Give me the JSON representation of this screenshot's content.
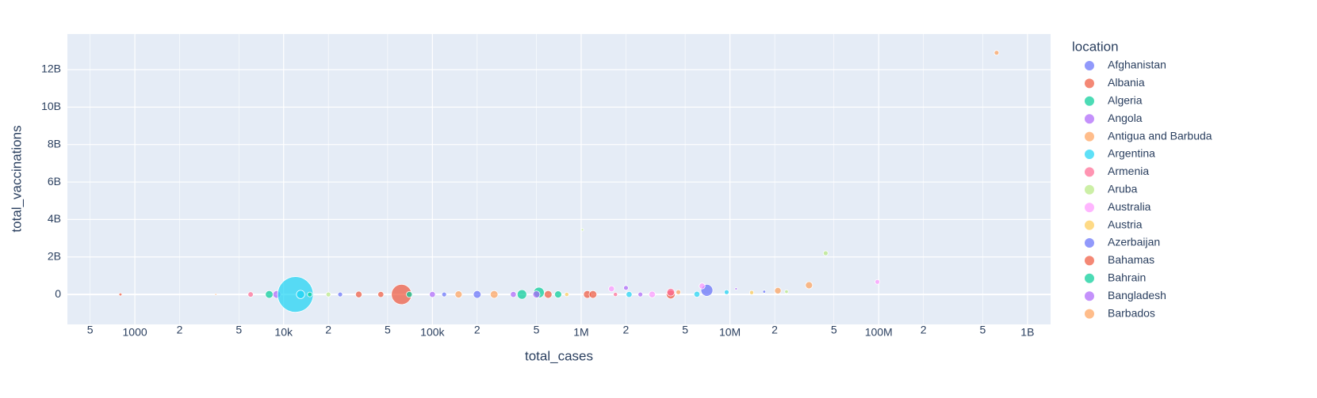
{
  "chart_data": {
    "type": "scatter",
    "xlabel": "total_cases",
    "ylabel": "total_vaccinations",
    "legend_title": "location",
    "xscale": "log",
    "grid": true,
    "xlim": [
      352,
      1430000000
    ],
    "ylim": [
      -1600000000,
      13900000000
    ],
    "xticks": [
      {
        "value": 500,
        "label": "5"
      },
      1000,
      {
        "value": 2000,
        "label": "2"
      },
      {
        "value": 5000,
        "label": "5"
      },
      {
        "value": 10000,
        "label": "10k"
      },
      {
        "value": 20000,
        "label": "2"
      },
      {
        "value": 50000,
        "label": "5"
      },
      {
        "value": 100000,
        "label": "100k"
      },
      {
        "value": 200000,
        "label": "2"
      },
      {
        "value": 500000,
        "label": "5"
      },
      {
        "value": 1000000,
        "label": "1M"
      },
      {
        "value": 2000000,
        "label": "2"
      },
      {
        "value": 5000000,
        "label": "5"
      },
      {
        "value": 10000000,
        "label": "10M"
      },
      {
        "value": 20000000,
        "label": "2"
      },
      {
        "value": 50000000,
        "label": "5"
      },
      {
        "value": 100000000,
        "label": "100M"
      },
      {
        "value": 200000000,
        "label": "2"
      },
      {
        "value": 500000000,
        "label": "5"
      },
      {
        "value": 1000000000,
        "label": "1B"
      }
    ],
    "yticks": [
      0,
      {
        "value": 2000000000,
        "label": "2B"
      },
      {
        "value": 4000000000,
        "label": "4B"
      },
      {
        "value": 6000000000,
        "label": "6B"
      },
      {
        "value": 8000000000,
        "label": "8B"
      },
      {
        "value": 10000000000,
        "label": "10B"
      },
      {
        "value": 12000000000,
        "label": "12B"
      }
    ],
    "series": [
      {
        "name": "Afghanistan",
        "color": "#636efa",
        "x": [
          7000000,
          120000,
          24000
        ],
        "values": [
          220000000,
          0,
          0
        ],
        "sizes": [
          20,
          8,
          8
        ]
      },
      {
        "name": "Albania",
        "color": "#EF553B",
        "x": [
          800,
          32000,
          62000,
          600000,
          1100000,
          4000000
        ],
        "values": [
          0,
          0,
          0,
          0,
          0,
          0
        ],
        "sizes": [
          5,
          11,
          34,
          13,
          13,
          15
        ]
      },
      {
        "name": "Algeria",
        "color": "#00cc96",
        "x": [
          520000,
          400000,
          8000,
          70000
        ],
        "values": [
          100000000,
          0,
          0,
          0
        ],
        "sizes": [
          18,
          16,
          13,
          10
        ]
      },
      {
        "name": "Angola",
        "color": "#ab63fa",
        "x": [
          9000,
          2000000,
          11000000,
          2500000,
          350000
        ],
        "values": [
          0,
          350000000,
          300000000,
          0,
          0
        ],
        "sizes": [
          13,
          8,
          4,
          8,
          10
        ]
      },
      {
        "name": "Antigua and Barbuda",
        "color": "#FFA15A",
        "x": [
          21000000,
          4500000,
          260000
        ],
        "values": [
          200000000,
          120000000,
          0
        ],
        "sizes": [
          11,
          8,
          13
        ]
      },
      {
        "name": "Argentina",
        "color": "#19d3f3",
        "x": [
          12000,
          13000,
          2100000,
          6000000,
          9500000
        ],
        "values": [
          0,
          0,
          0,
          10000000,
          120000000
        ],
        "sizes": [
          60,
          14,
          10,
          10,
          8
        ]
      },
      {
        "name": "Armenia",
        "color": "#FF6692",
        "x": [
          6000,
          4000000,
          1700000
        ],
        "values": [
          0,
          120000000,
          0
        ],
        "sizes": [
          9,
          13,
          7
        ]
      },
      {
        "name": "Aruba",
        "color": "#B6E880",
        "x": [
          1020000,
          44000000,
          24000000,
          20000
        ],
        "values": [
          3450000000,
          2200000000,
          150000000,
          0
        ],
        "sizes": [
          4,
          8,
          6,
          8
        ]
      },
      {
        "name": "Australia",
        "color": "#FF97FF",
        "x": [
          98000000,
          6500000,
          1600000,
          3000000
        ],
        "values": [
          670000000,
          450000000,
          300000000,
          0
        ],
        "sizes": [
          8,
          10,
          10,
          11
        ]
      },
      {
        "name": "Austria",
        "color": "#FECB52",
        "x": [
          14000000,
          800000
        ],
        "values": [
          100000000,
          0
        ],
        "sizes": [
          7,
          7
        ]
      },
      {
        "name": "Azerbaijan",
        "color": "#636efa",
        "x": [
          200000,
          17000000
        ],
        "values": [
          0,
          150000000
        ],
        "sizes": [
          13,
          5
        ]
      },
      {
        "name": "Bahamas",
        "color": "#EF553B",
        "x": [
          45000,
          1200000
        ],
        "values": [
          0,
          0
        ],
        "sizes": [
          10,
          13
        ]
      },
      {
        "name": "Bahrain",
        "color": "#00cc96",
        "x": [
          700000,
          15000
        ],
        "values": [
          0,
          0
        ],
        "sizes": [
          12,
          8
        ]
      },
      {
        "name": "Bangladesh",
        "color": "#ab63fa",
        "x": [
          100000,
          500000
        ],
        "values": [
          0,
          0
        ],
        "sizes": [
          10,
          12
        ]
      },
      {
        "name": "Barbados",
        "color": "#FFA15A",
        "x": [
          620000000,
          34000000,
          3500,
          150000
        ],
        "values": [
          12900000000,
          490000000,
          0,
          0
        ],
        "sizes": [
          8,
          12,
          3,
          12
        ]
      }
    ]
  }
}
